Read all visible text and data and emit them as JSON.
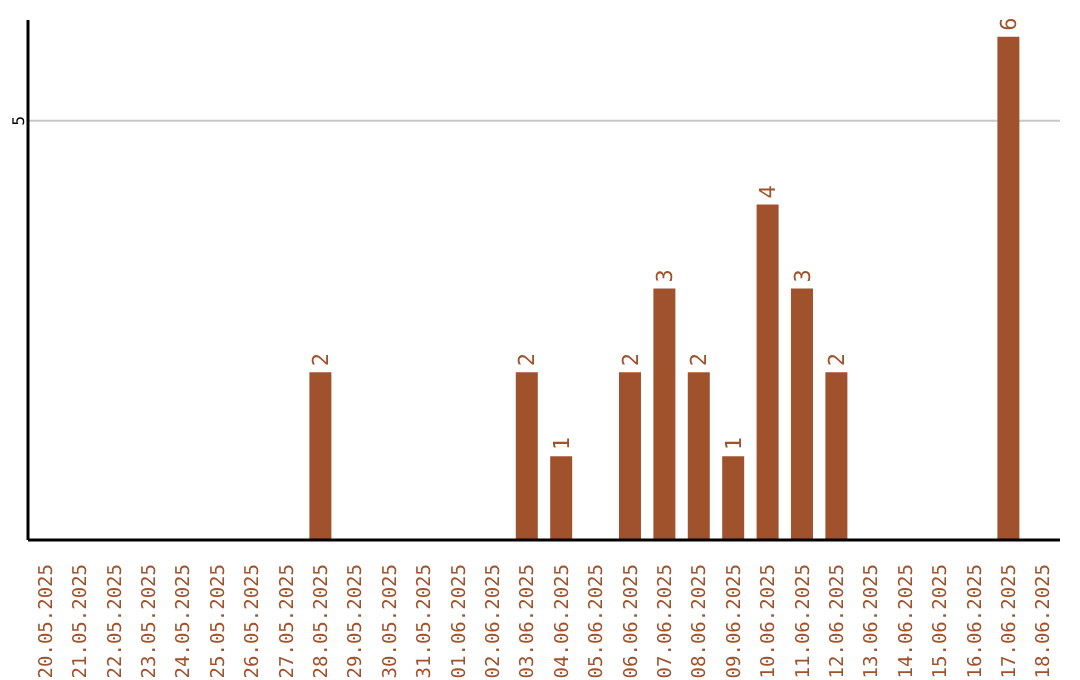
{
  "chart_data": {
    "type": "bar",
    "categories": [
      "20.05.2025",
      "21.05.2025",
      "22.05.2025",
      "23.05.2025",
      "24.05.2025",
      "25.05.2025",
      "26.05.2025",
      "27.05.2025",
      "28.05.2025",
      "29.05.2025",
      "30.05.2025",
      "31.05.2025",
      "01.06.2025",
      "02.06.2025",
      "03.06.2025",
      "04.06.2025",
      "05.06.2025",
      "06.06.2025",
      "07.06.2025",
      "08.06.2025",
      "09.06.2025",
      "10.06.2025",
      "11.06.2025",
      "12.06.2025",
      "13.06.2025",
      "14.06.2025",
      "15.06.2025",
      "16.06.2025",
      "17.06.2025",
      "18.06.2025"
    ],
    "values": [
      null,
      null,
      null,
      null,
      null,
      null,
      null,
      null,
      2,
      null,
      null,
      null,
      null,
      null,
      2,
      1,
      null,
      2,
      3,
      2,
      1,
      4,
      3,
      2,
      null,
      null,
      null,
      null,
      6,
      null
    ],
    "color": "#a0522d",
    "ylim": [
      0,
      6.2
    ],
    "yticks": [
      5
    ],
    "grid": "y",
    "data_labels": true
  }
}
